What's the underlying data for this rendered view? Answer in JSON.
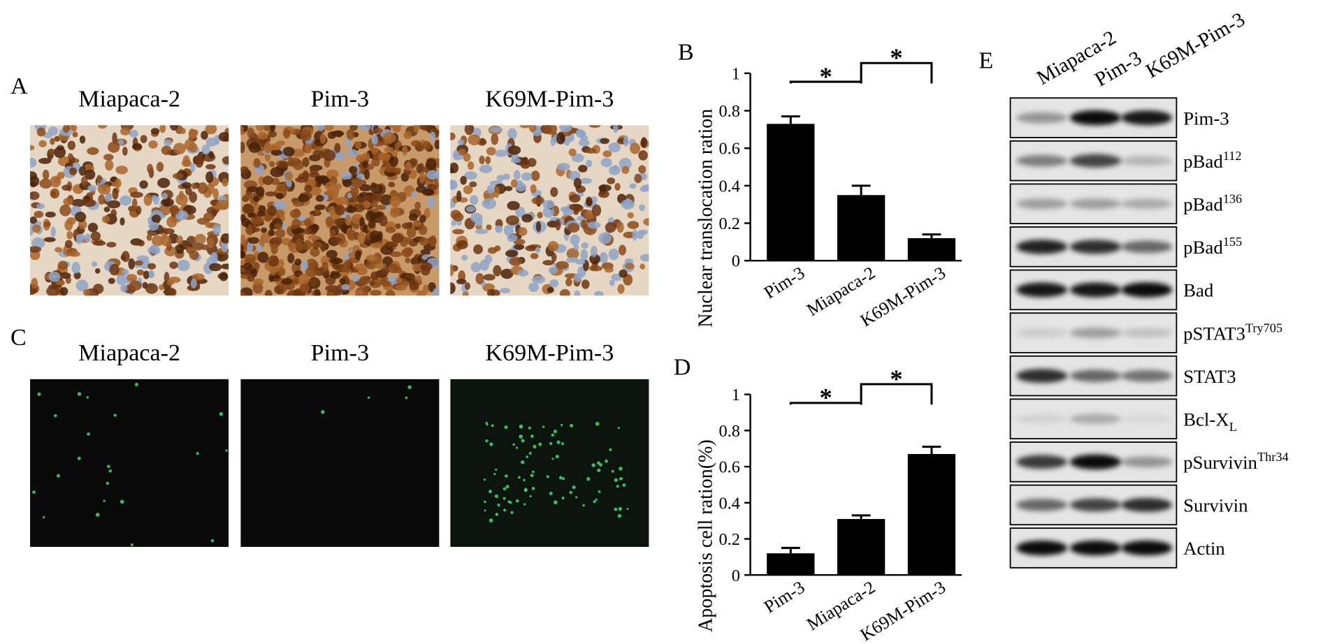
{
  "panel_a": {
    "letter": "A",
    "labels": [
      "Miapaca-2",
      "Pim-3",
      "K69M-Pim-3"
    ]
  },
  "panel_c": {
    "letter": "C",
    "labels": [
      "Miapaca-2",
      "Pim-3",
      "K69M-Pim-3"
    ]
  },
  "chart_data": [
    {
      "type": "bar",
      "panel": "B",
      "ylabel": "Nuclear translocation ration",
      "categories": [
        "Pim-3",
        "Miapaca-2",
        "K69M-Pim-3"
      ],
      "values": [
        0.73,
        0.35,
        0.12
      ],
      "errors": [
        0.04,
        0.05,
        0.02
      ],
      "color": "#000000",
      "ylim": [
        0,
        1
      ],
      "yticks": [
        0,
        0.2,
        0.4,
        0.6,
        0.8,
        1
      ],
      "annotations": [
        "*",
        "*"
      ]
    },
    {
      "type": "bar",
      "panel": "D",
      "ylabel": "Apoptosis cell ration(%)",
      "categories": [
        "Pim-3",
        "Miapaca-2",
        "K69M-Pim-3"
      ],
      "values": [
        0.12,
        0.31,
        0.67
      ],
      "errors": [
        0.03,
        0.02,
        0.04
      ],
      "color": "#000000",
      "ylim": [
        0,
        1
      ],
      "yticks": [
        0,
        0.2,
        0.4,
        0.6,
        0.8,
        1
      ],
      "annotations": [
        "*",
        "*"
      ]
    }
  ],
  "panel_e": {
    "letter": "E",
    "lanes": [
      "Miapaca-2",
      "Pim-3",
      "K69M-Pim-3"
    ],
    "rows": [
      {
        "label": "Pim-3"
      },
      {
        "label": "pBad",
        "sup": "112"
      },
      {
        "label": "pBad",
        "sup": "136"
      },
      {
        "label": "pBad",
        "sup": "155"
      },
      {
        "label": "Bad"
      },
      {
        "label": "pSTAT3",
        "sup": "Try705"
      },
      {
        "label": "STAT3"
      },
      {
        "label": "Bcl-X",
        "sub": "L"
      },
      {
        "label": "pSurvivin",
        "sup": "Thr34"
      },
      {
        "label": "Survivin"
      },
      {
        "label": "Actin"
      }
    ]
  }
}
